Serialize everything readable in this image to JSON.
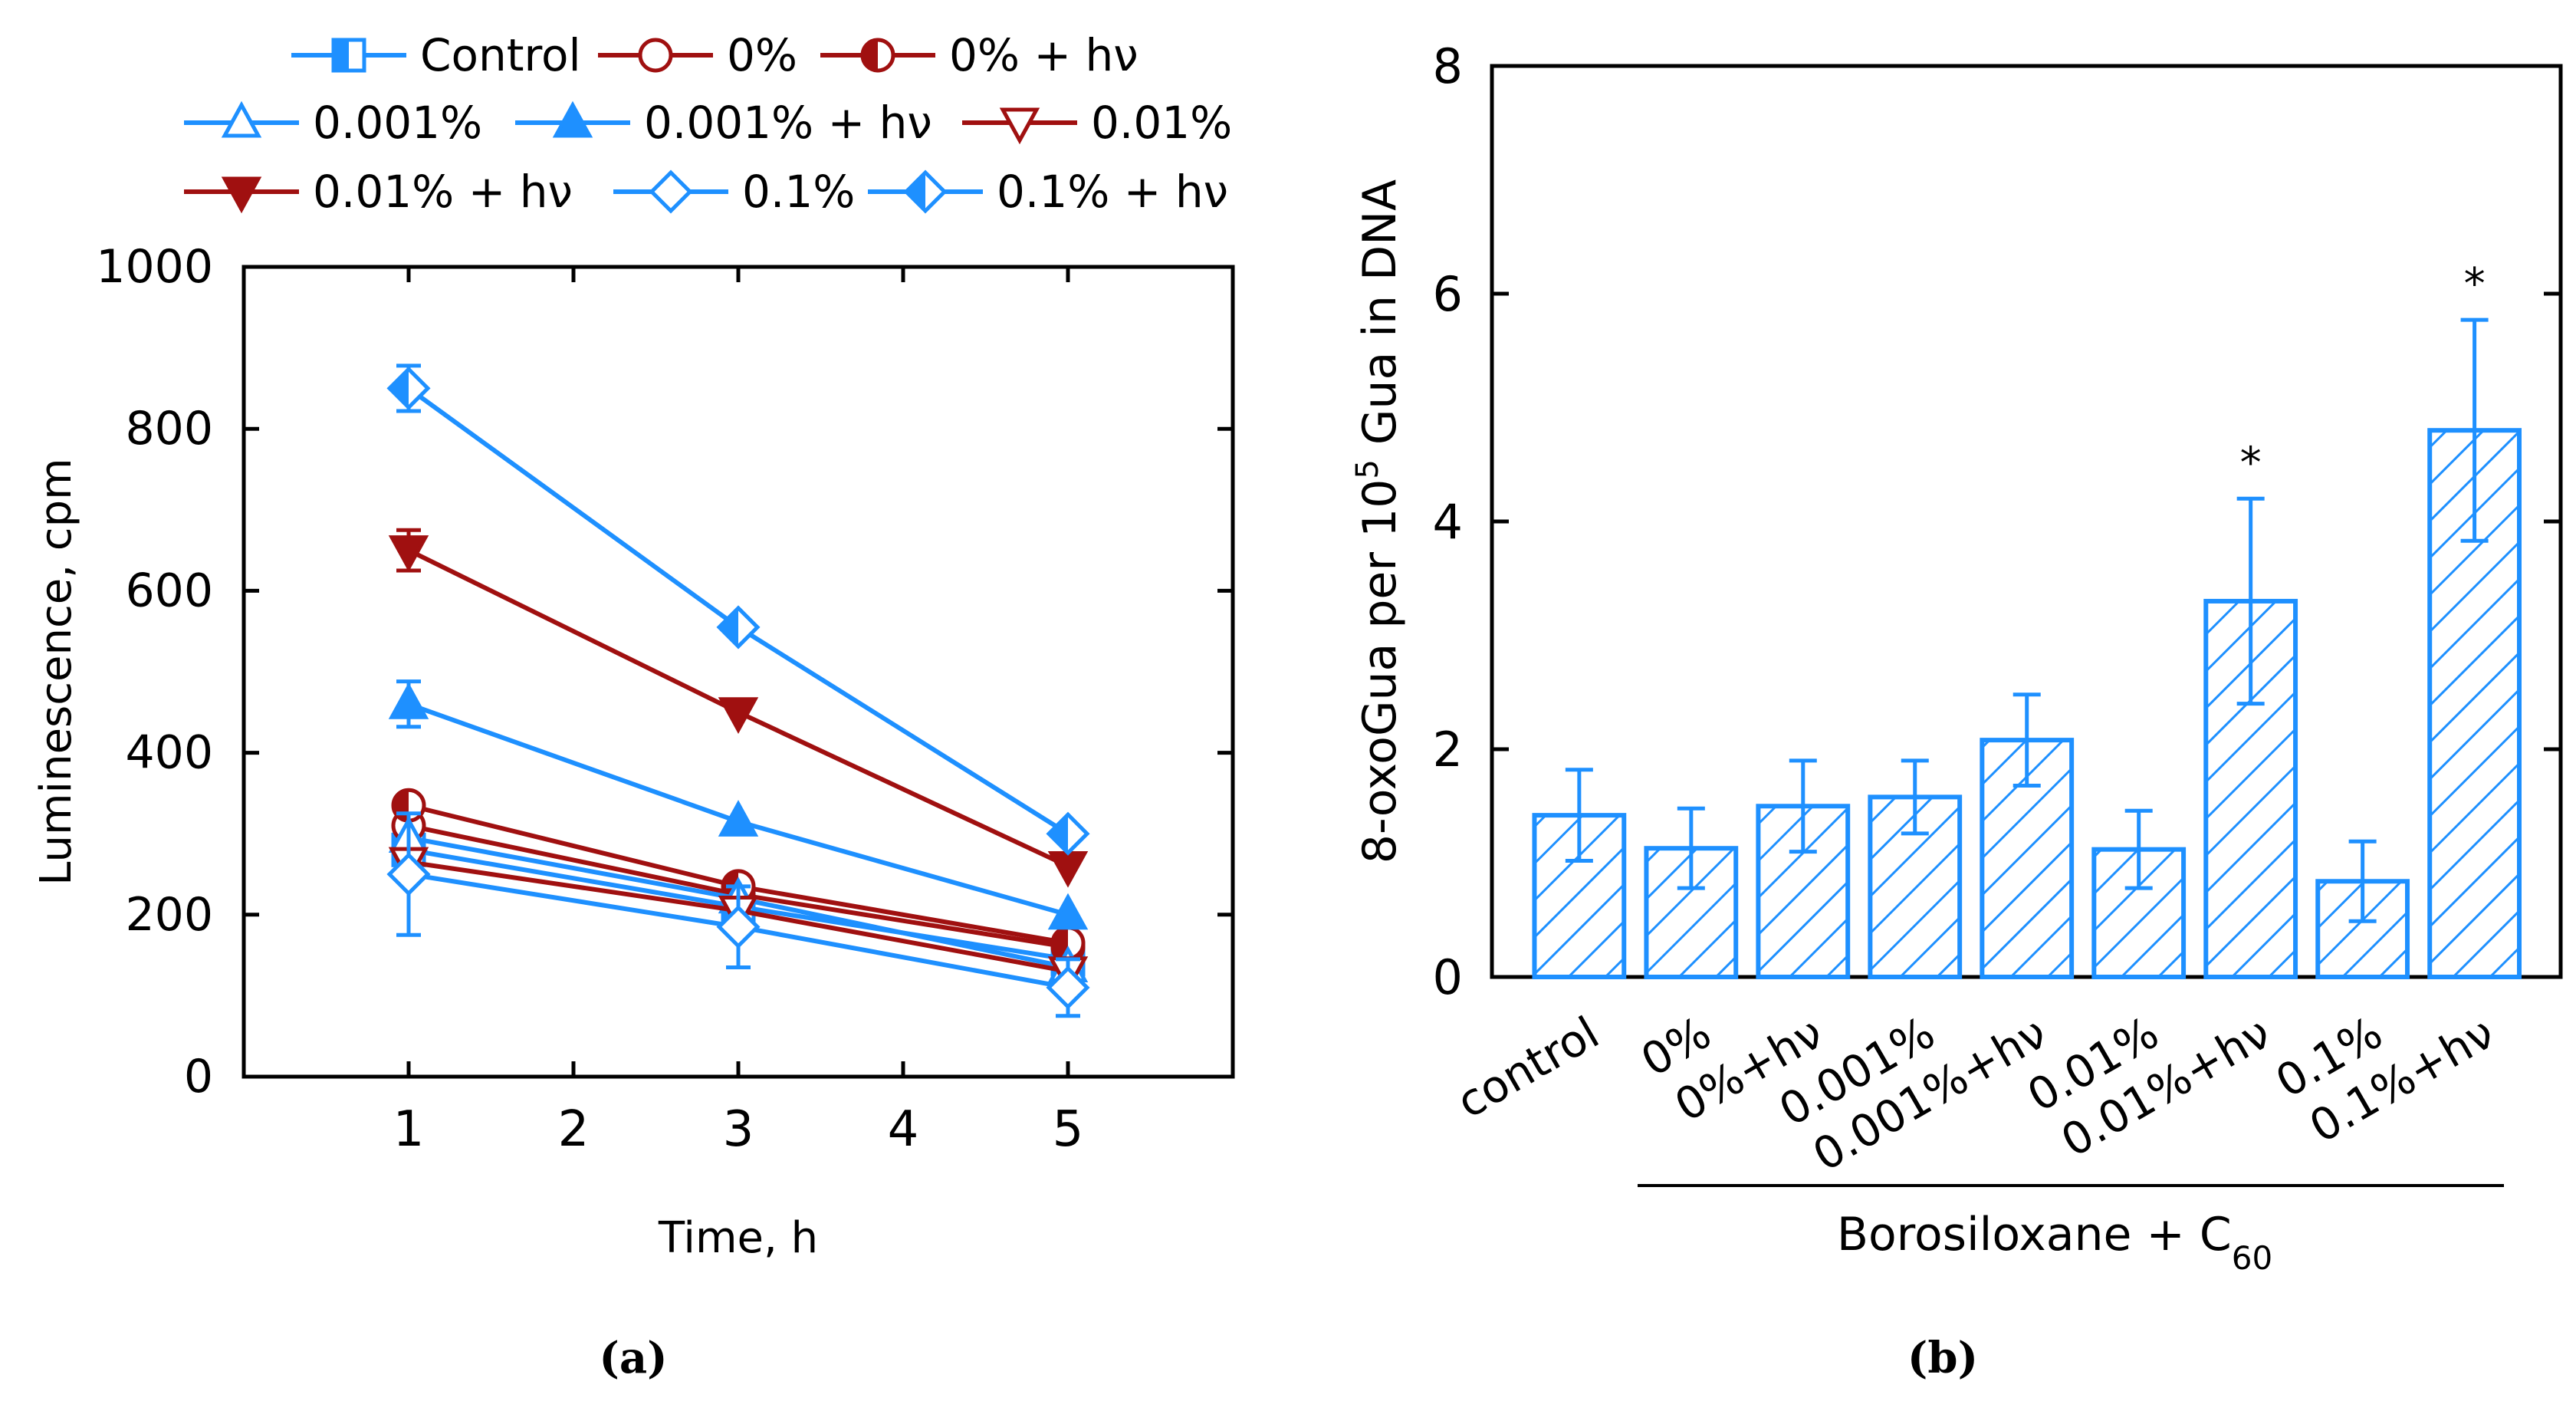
{
  "figure": {
    "label_a": "(a)",
    "label_b": "(b)"
  },
  "chart_data": [
    {
      "type": "line",
      "panel": "a",
      "title": "",
      "xlabel": "Time, h",
      "ylabel": "Luminescence, cpm",
      "xlim": [
        0,
        6
      ],
      "ylim": [
        0,
        1000
      ],
      "xticks": [
        1,
        2,
        3,
        4,
        5
      ],
      "yticks": [
        0,
        200,
        400,
        600,
        800,
        1000
      ],
      "legend_position": "top",
      "series": [
        {
          "name": "Control",
          "color": "#1e90ff",
          "marker": "square-half",
          "x": [
            1,
            3,
            5
          ],
          "y": [
            280,
            210,
            145
          ],
          "err": [
            0,
            0,
            0
          ]
        },
        {
          "name": "0%",
          "color": "#a01010",
          "marker": "circle-open",
          "x": [
            1,
            3,
            5
          ],
          "y": [
            310,
            225,
            160
          ],
          "err": [
            0,
            0,
            0
          ]
        },
        {
          "name": "0% + hν",
          "color": "#a01010",
          "marker": "circle-half",
          "x": [
            1,
            3,
            5
          ],
          "y": [
            335,
            235,
            165
          ],
          "err": [
            0,
            0,
            0
          ]
        },
        {
          "name": "0.001%",
          "color": "#1e90ff",
          "marker": "triangle-open",
          "x": [
            1,
            3,
            5
          ],
          "y": [
            295,
            220,
            135
          ],
          "err": [
            0,
            0,
            0
          ]
        },
        {
          "name": "0.001% + hν",
          "color": "#1e90ff",
          "marker": "triangle-filled",
          "x": [
            1,
            3,
            5
          ],
          "y": [
            460,
            315,
            200
          ],
          "err": [
            28,
            0,
            0
          ]
        },
        {
          "name": "0.01%",
          "color": "#a01010",
          "marker": "tridown-open",
          "x": [
            1,
            3,
            5
          ],
          "y": [
            265,
            205,
            130
          ],
          "err": [
            0,
            0,
            0
          ]
        },
        {
          "name": "0.01% + hν",
          "color": "#a01010",
          "marker": "tridown-filled",
          "x": [
            1,
            3,
            5
          ],
          "y": [
            650,
            450,
            260
          ],
          "err": [
            25,
            0,
            0
          ]
        },
        {
          "name": "0.1%",
          "color": "#1e90ff",
          "marker": "diamond-open",
          "x": [
            1,
            3,
            5
          ],
          "y": [
            250,
            185,
            110
          ],
          "err": [
            75,
            50,
            35
          ]
        },
        {
          "name": "0.1% + hν",
          "color": "#1e90ff",
          "marker": "diamond-half",
          "x": [
            1,
            3,
            5
          ],
          "y": [
            850,
            555,
            300
          ],
          "err": [
            28,
            0,
            0
          ]
        }
      ]
    },
    {
      "type": "bar",
      "panel": "b",
      "title": "",
      "ylabel_prefix": "8-oxoGua per 10",
      "ylabel_sup": "5",
      "ylabel_suffix": " Gua in DNA",
      "ylim": [
        0,
        8
      ],
      "yticks": [
        0,
        2,
        4,
        6,
        8
      ],
      "bar_color": "#1e90ff",
      "bar_pattern": "diagonal-hatch",
      "categories": [
        "control",
        "0%",
        "0%+hν",
        "0.001%",
        "0.001%+hν",
        "0.01%",
        "0.01%+hν",
        "0.1%",
        "0.1%+hν"
      ],
      "values": [
        1.42,
        1.13,
        1.5,
        1.58,
        2.08,
        1.12,
        3.3,
        0.84,
        4.8
      ],
      "errors": [
        0.4,
        0.35,
        0.4,
        0.32,
        0.4,
        0.34,
        0.9,
        0.35,
        0.97
      ],
      "significant": [
        false,
        false,
        false,
        false,
        false,
        false,
        true,
        false,
        true
      ],
      "significance_marker": "*",
      "group_label_main": "Borosiloxane + C",
      "group_label_sub": "60"
    }
  ]
}
